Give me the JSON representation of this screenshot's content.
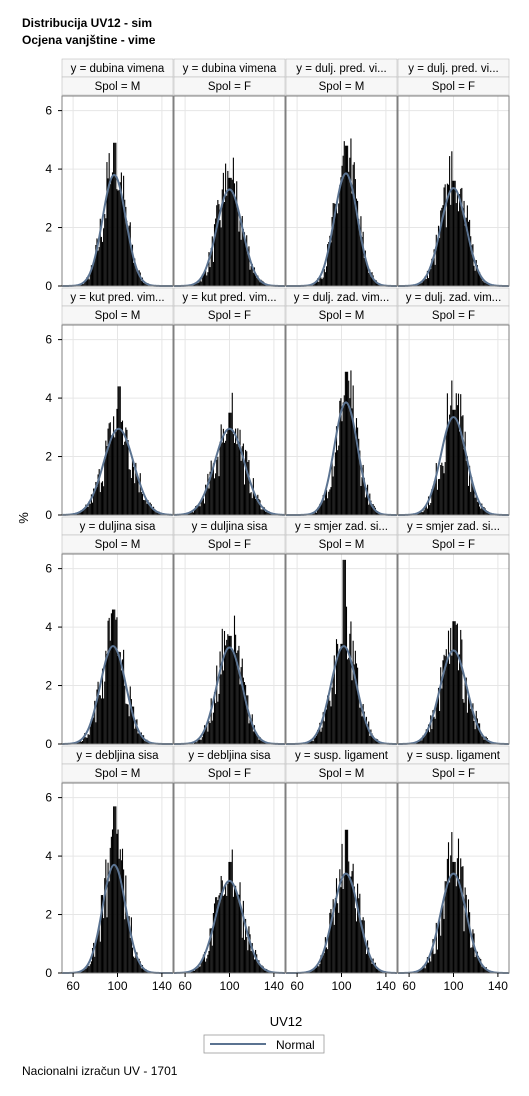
{
  "titles": {
    "line1": "Distribucija UV12 - sim",
    "line2": "Ocjena vanjštine - vime"
  },
  "footer": "Nacionalni izračun UV - 1701",
  "colors": {
    "bars": "#000000",
    "normal_curve": "#5b7391",
    "header_bg": "#f7f7f7",
    "frame": "#808080",
    "grid": "#e6e6e6"
  },
  "chart_data": {
    "type": "histogram-panel",
    "xlabel": "UV12",
    "ylabel": "%",
    "x_ticks": [
      60,
      100,
      140
    ],
    "y_ticks": [
      0,
      2,
      4,
      6
    ],
    "xlim": [
      50,
      150
    ],
    "ylim": [
      0,
      6.5
    ],
    "grid": true,
    "legend": {
      "position": "bottom",
      "entries": [
        "Normal"
      ]
    },
    "column_headers": [
      "Spol = M",
      "Spol = F",
      "Spol = M",
      "Spol = F"
    ],
    "rows": [
      {
        "labels": [
          "y = dubina vimena",
          "y = dubina vimena",
          "y = dulj. pred. vi...",
          "y = dulj. pred. vi..."
        ],
        "panels": [
          {
            "mean": 97,
            "sd": 10.5,
            "peak": 3.8,
            "barpeak": 4.9
          },
          {
            "mean": 100,
            "sd": 11.5,
            "peak": 3.3,
            "barpeak": 3.7
          },
          {
            "mean": 104,
            "sd": 10.5,
            "peak": 3.85,
            "barpeak": 4.8
          },
          {
            "mean": 100,
            "sd": 11.5,
            "peak": 3.35,
            "barpeak": 3.6
          }
        ]
      },
      {
        "labels": [
          "y = kut pred. vim...",
          "y = kut pred. vim...",
          "y = dulj. zad. vim...",
          "y = dulj. zad. vim..."
        ],
        "panels": [
          {
            "mean": 101,
            "sd": 13.5,
            "peak": 2.95,
            "barpeak": 4.4
          },
          {
            "mean": 100,
            "sd": 13.5,
            "peak": 2.95,
            "barpeak": 3.5
          },
          {
            "mean": 104,
            "sd": 10.5,
            "peak": 3.85,
            "barpeak": 4.9
          },
          {
            "mean": 100,
            "sd": 11.5,
            "peak": 3.35,
            "barpeak": 3.6
          }
        ]
      },
      {
        "labels": [
          "y = duljina sisa",
          "y = duljina sisa",
          "y = smjer zad. si...",
          "y = smjer zad. si..."
        ],
        "panels": [
          {
            "mean": 96,
            "sd": 11.5,
            "peak": 3.35,
            "barpeak": 4.6
          },
          {
            "mean": 100,
            "sd": 11.5,
            "peak": 3.3,
            "barpeak": 3.7
          },
          {
            "mean": 102,
            "sd": 11.5,
            "peak": 3.35,
            "barpeak": 6.3
          },
          {
            "mean": 100,
            "sd": 12,
            "peak": 3.2,
            "barpeak": 4.2
          }
        ]
      },
      {
        "labels": [
          "y = debljina sisa",
          "y = debljina sisa",
          "y = susp. ligament",
          "y = susp. ligament"
        ],
        "panels": [
          {
            "mean": 97,
            "sd": 10.5,
            "peak": 3.7,
            "barpeak": 5.7
          },
          {
            "mean": 100,
            "sd": 12.5,
            "peak": 3.15,
            "barpeak": 3.8
          },
          {
            "mean": 104,
            "sd": 11.5,
            "peak": 3.4,
            "barpeak": 4.9
          },
          {
            "mean": 100,
            "sd": 11.5,
            "peak": 3.4,
            "barpeak": 3.8
          }
        ]
      }
    ]
  }
}
